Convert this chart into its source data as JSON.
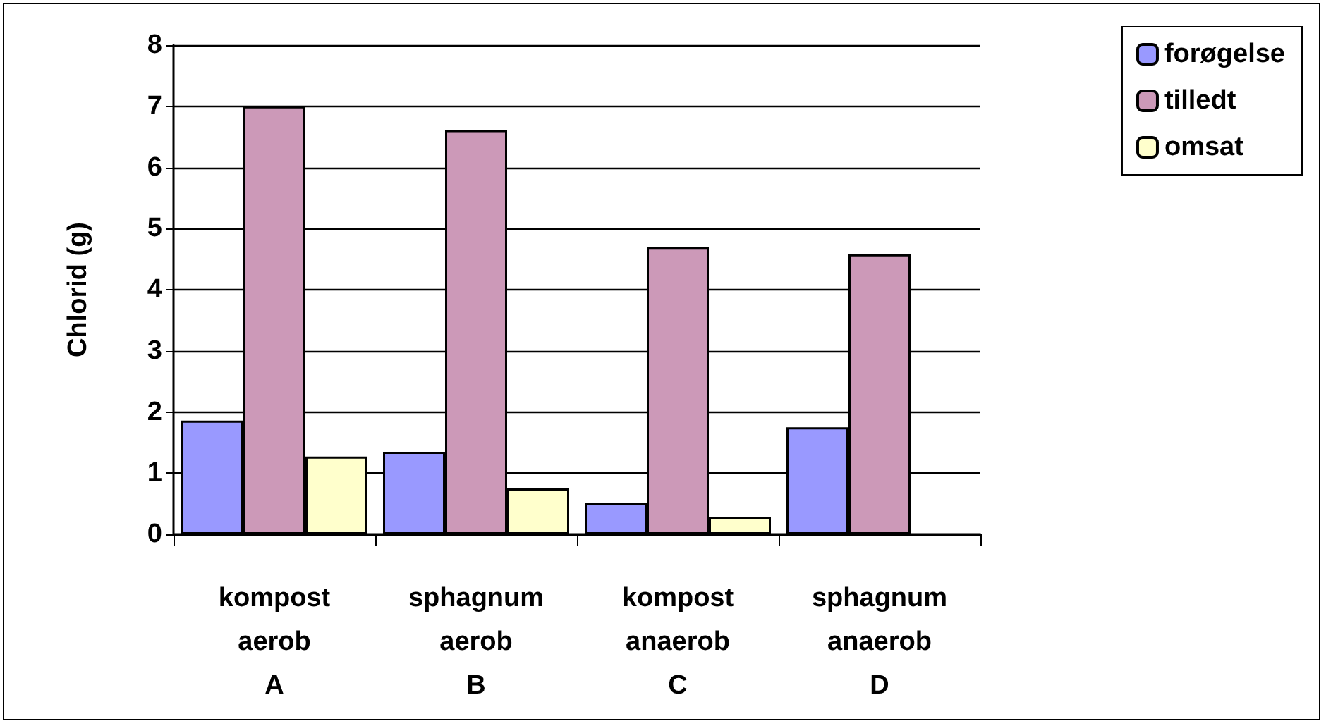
{
  "chart_data": {
    "type": "bar",
    "ylabel": "Chlorid (g)",
    "categories": [
      "kompost\naerob\nA",
      "sphagnum\naerob\nB",
      "kompost\nanaerob\nC",
      "sphagnum\nanaerob\nD"
    ],
    "series": [
      {
        "name": "forøgelse",
        "color": "#9999ff",
        "values": [
          1.86,
          1.35,
          0.51,
          1.75
        ]
      },
      {
        "name": "tilledt",
        "color": "#cc99b8",
        "values": [
          7.0,
          6.61,
          4.7,
          4.58
        ]
      },
      {
        "name": "omsat",
        "color": "#ffffcc",
        "values": [
          1.27,
          0.75,
          0.28,
          null
        ]
      }
    ],
    "ylim": [
      0,
      8
    ],
    "yticks": [
      0,
      1,
      2,
      3,
      4,
      5,
      6,
      7,
      8
    ],
    "grid": "y",
    "legend": "top right"
  }
}
